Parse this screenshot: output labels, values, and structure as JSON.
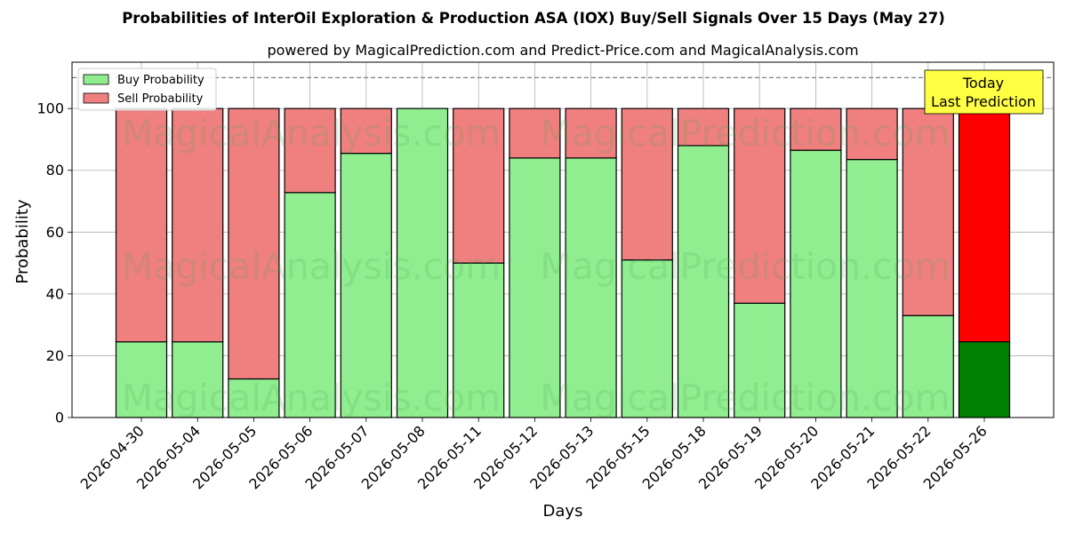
{
  "chart_data": {
    "type": "bar",
    "stacked": true,
    "title": "Probabilities of InterOil Exploration & Production ASA (IOX) Buy/Sell Signals Over 15 Days (May 27)",
    "subtitle": "powered by MagicalPrediction.com and Predict-Price.com and MagicalAnalysis.com",
    "xlabel": "Days",
    "ylabel": "Probability",
    "ylim": [
      0,
      115
    ],
    "yticks": [
      0,
      20,
      40,
      60,
      80,
      100
    ],
    "grid": true,
    "legend_position": "top-left",
    "reference_line": 110,
    "categories": [
      "2026-04-30",
      "2026-05-04",
      "2026-05-05",
      "2026-05-06",
      "2026-05-07",
      "2026-05-08",
      "2026-05-11",
      "2026-05-12",
      "2026-05-13",
      "2026-05-15",
      "2026-05-18",
      "2026-05-19",
      "2026-05-20",
      "2026-05-21",
      "2026-05-22",
      "2026-05-26"
    ],
    "series": [
      {
        "name": "Buy Probability",
        "color": "#90ee90",
        "highlight_color": "#008000",
        "values": [
          24.5,
          24.5,
          12.5,
          72.8,
          85.5,
          100,
          50,
          84,
          84,
          51,
          88,
          37,
          86.5,
          83.5,
          33,
          24.5
        ]
      },
      {
        "name": "Sell Probability",
        "color": "#f08080",
        "highlight_color": "#ff0000",
        "values": [
          75.5,
          75.5,
          87.5,
          27.2,
          14.5,
          0,
          50,
          16,
          16,
          49,
          12,
          63,
          13.5,
          16.5,
          67,
          75.5
        ]
      }
    ],
    "highlight_index": 15,
    "annotation": {
      "lines": [
        "Today",
        "Last Prediction"
      ],
      "fill": "#ffff44"
    },
    "watermarks": [
      "MagicalAnalysis.com",
      "MagicalPrediction.com",
      "MagicalAnalysis.com",
      "MagicalPrediction.com",
      "MagicalAnalysis.com",
      "MagicalPrediction.com"
    ]
  }
}
